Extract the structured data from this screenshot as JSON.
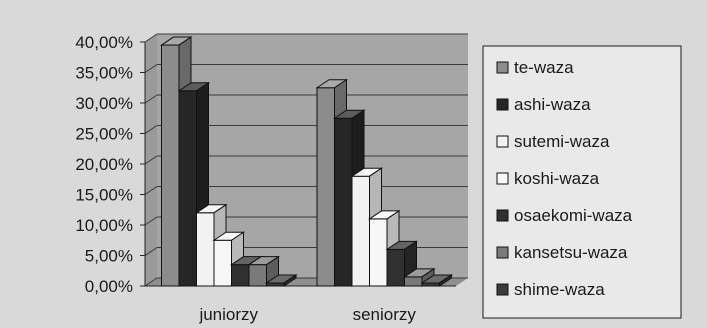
{
  "chart_data": {
    "type": "bar",
    "categories": [
      "juniorzy",
      "seniorzy"
    ],
    "series": [
      {
        "name": "te-waza",
        "values": [
          39.5,
          32.5
        ],
        "color": "#8c8c8c"
      },
      {
        "name": "ashi-waza",
        "values": [
          32.0,
          27.5
        ],
        "color": "#262626"
      },
      {
        "name": "sutemi-waza",
        "values": [
          12.0,
          18.0
        ],
        "color": "#f2f2f2"
      },
      {
        "name": "koshi-waza",
        "values": [
          7.5,
          11.0
        ],
        "color": "#f7f7f7"
      },
      {
        "name": "osaekomi-waza",
        "values": [
          3.5,
          6.0
        ],
        "color": "#303030"
      },
      {
        "name": "kansetsu-waza",
        "values": [
          3.5,
          1.5
        ],
        "color": "#7a7a7a"
      },
      {
        "name": "shime-waza",
        "values": [
          0.5,
          0.5
        ],
        "color": "#3a3a3a"
      }
    ],
    "y_ticks": [
      "0,00%",
      "5,00%",
      "10,00%",
      "15,00%",
      "20,00%",
      "25,00%",
      "30,00%",
      "35,00%",
      "40,00%"
    ],
    "ylim": [
      0,
      40
    ],
    "grid": true,
    "legend_position": "right",
    "view": "3d"
  }
}
